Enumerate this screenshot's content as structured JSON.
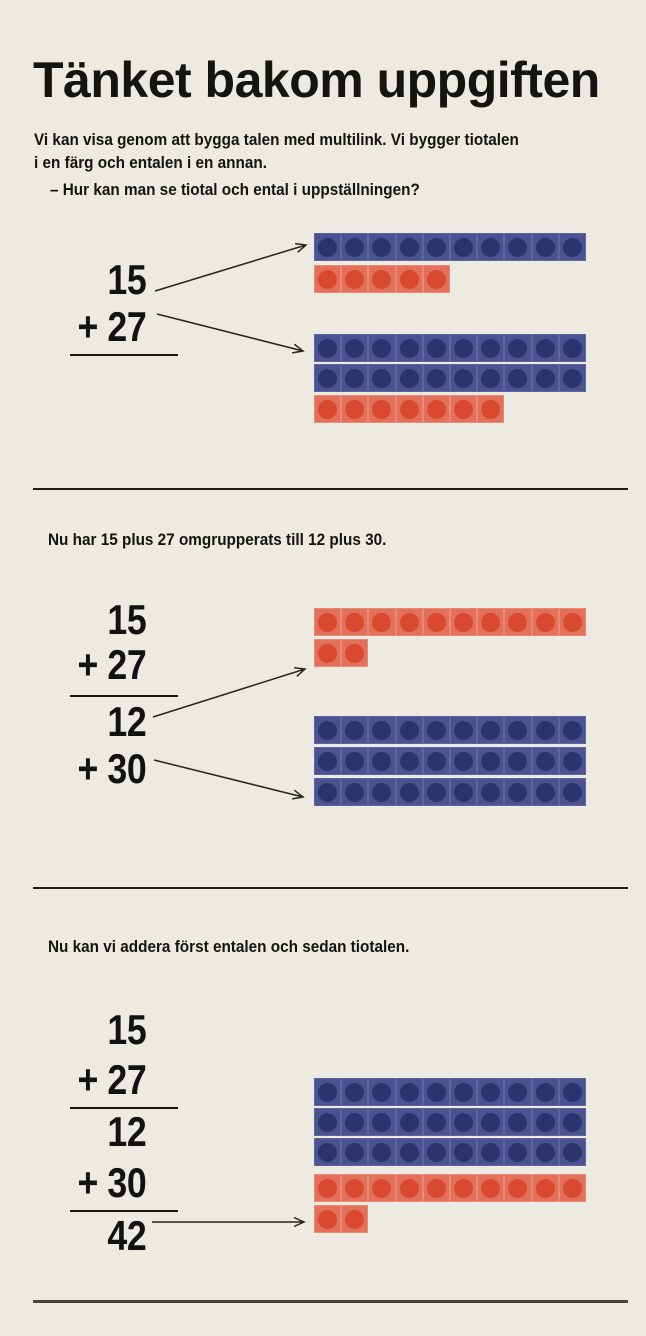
{
  "title": "Tänket bakom uppgiften",
  "intro": {
    "line1": "Vi kan visa genom att bygga talen med multilink. Vi bygger tiotalen",
    "line2": "i en färg och entalen i en annan.",
    "line3": "– Hur kan man se tiotal och ental i uppställningen?"
  },
  "colors": {
    "background": "#edeae2",
    "text": "#141410",
    "line": "#26251f",
    "blue_body": "#4a528f",
    "blue_dot": "#2c346d",
    "blue_edge": "#5e66a0",
    "red_body": "#e2705a",
    "red_dot": "#d8492f",
    "red_edge": "#ea8a76"
  },
  "sections": [
    {
      "math": [
        "15",
        "+ 27"
      ],
      "groups": [
        {
          "rows": [
            {
              "color": "blue",
              "count": 10
            },
            {
              "color": "red",
              "count": 5
            }
          ]
        },
        {
          "rows": [
            {
              "color": "blue",
              "count": 10
            },
            {
              "color": "blue",
              "count": 10
            },
            {
              "color": "red",
              "count": 7
            }
          ]
        }
      ]
    },
    {
      "caption": "Nu har 15 plus 27 omgrupperats till 12 plus 30.",
      "math": [
        "15",
        "+ 27",
        "12",
        "+ 30"
      ],
      "groups": [
        {
          "rows": [
            {
              "color": "red",
              "count": 10
            },
            {
              "color": "red",
              "count": 2
            }
          ]
        },
        {
          "rows": [
            {
              "color": "blue",
              "count": 10
            },
            {
              "color": "blue",
              "count": 10
            },
            {
              "color": "blue",
              "count": 10
            }
          ]
        }
      ]
    },
    {
      "caption": "Nu kan vi addera först entalen och sedan tiotalen.",
      "math": [
        "15",
        "+ 27",
        "12",
        "+ 30",
        "42"
      ],
      "groups": [
        {
          "rows": [
            {
              "color": "blue",
              "count": 10
            },
            {
              "color": "blue",
              "count": 10
            },
            {
              "color": "blue",
              "count": 10
            },
            {
              "color": "red",
              "count": 10
            },
            {
              "color": "red",
              "count": 2
            }
          ]
        }
      ]
    }
  ]
}
